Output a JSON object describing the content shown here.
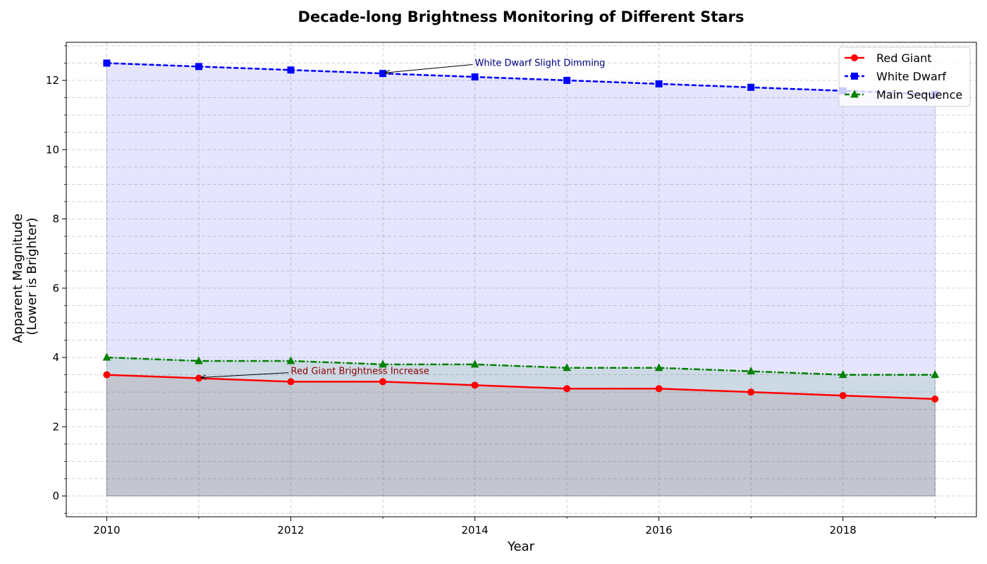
{
  "chart_data": {
    "type": "line",
    "title": "Decade-long Brightness Monitoring of Different Stars",
    "xlabel": "Year",
    "ylabel_lines": [
      "Apparent Magnitude",
      "(Lower is Brighter)"
    ],
    "x": [
      2010,
      2011,
      2012,
      2013,
      2014,
      2015,
      2016,
      2017,
      2018,
      2019
    ],
    "xlim": [
      2009.56,
      2019.45
    ],
    "ylim": [
      -0.6,
      13.1
    ],
    "xticks": [
      2010,
      2012,
      2014,
      2016,
      2018
    ],
    "xticks_minor": [
      2011,
      2013,
      2015,
      2017,
      2019
    ],
    "yticks": [
      0,
      2,
      4,
      6,
      8,
      10,
      12
    ],
    "yticks_minor": [
      -0.5,
      0.5,
      1,
      1.5,
      2.5,
      3,
      3.5,
      4.5,
      5,
      5.5,
      6.5,
      7,
      7.5,
      8.5,
      9,
      9.5,
      10.5,
      11,
      11.5,
      12.5,
      13
    ],
    "grid": true,
    "legend_position": "top-right",
    "series": [
      {
        "name": "Red Giant",
        "values": [
          3.5,
          3.4,
          3.3,
          3.3,
          3.2,
          3.1,
          3.1,
          3.0,
          2.9,
          2.8
        ],
        "color": "#ff0000",
        "marker": "circle",
        "linestyle": "solid",
        "fill_color": "#8b0000"
      },
      {
        "name": "White Dwarf",
        "values": [
          12.5,
          12.4,
          12.3,
          12.2,
          12.1,
          12.0,
          11.9,
          11.8,
          11.7,
          11.6
        ],
        "color": "#0000ff",
        "marker": "square",
        "linestyle": "dashed",
        "fill_color": "#0000ff"
      },
      {
        "name": "Main Sequence",
        "values": [
          4.0,
          3.9,
          3.9,
          3.8,
          3.8,
          3.7,
          3.7,
          3.6,
          3.5,
          3.5
        ],
        "color": "#008000",
        "marker": "triangle",
        "linestyle": "dashdot",
        "fill_color": "#008000"
      }
    ],
    "annotations": [
      {
        "text": "White Dwarf Slight Dimming",
        "point": [
          2013,
          12.2
        ],
        "text_at": [
          2014,
          12.5
        ],
        "color": "#000080"
      },
      {
        "text": "Red Giant Brightness Increase",
        "point": [
          2011,
          3.4
        ],
        "text_at": [
          2012,
          3.6
        ],
        "color": "#8b0000"
      }
    ]
  }
}
